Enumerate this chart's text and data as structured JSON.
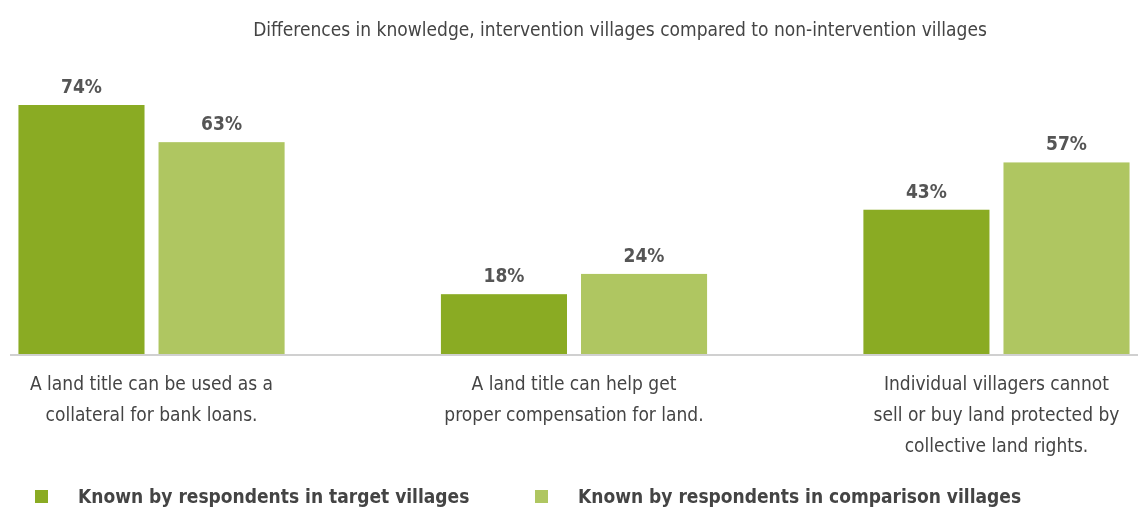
{
  "chart_data": {
    "type": "bar",
    "title": "Differences in knowledge, intervention villages compared to non-intervention villages",
    "categories": [
      "A land title can be used as a collateral for bank loans.",
      "A land title can help get proper compensation for land.",
      "Individual villagers cannot sell or buy land protected by collective land rights."
    ],
    "series": [
      {
        "name": "Known by respondents in target villages",
        "color": "#8aab23",
        "values": [
          74,
          18,
          43
        ],
        "value_labels": [
          "74%",
          "18%",
          "43%"
        ]
      },
      {
        "name": "Known by respondents in comparison villages",
        "color": "#afc661",
        "values": [
          63,
          24,
          57
        ],
        "value_labels": [
          "63%",
          "24%",
          "57%"
        ]
      }
    ],
    "legend": "bottom"
  }
}
